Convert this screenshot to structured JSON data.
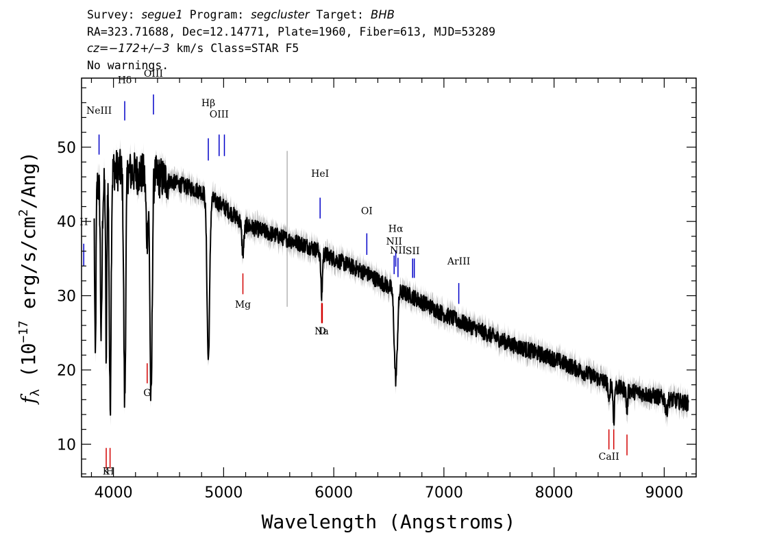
{
  "header": {
    "line1": {
      "survey_label": "Survey: ",
      "survey": "segue1",
      "program_label": " Program: ",
      "program": "segcluster",
      "target_label": " Target: ",
      "target": "BHB"
    },
    "line2": "RA=323.71688, Dec=12.14771, Plate=1960, Fiber=613, MJD=53289",
    "line3": {
      "cz_label": "cz=",
      "cz": "−172+/−3",
      "cz_rest": " km/s Class=STAR F5"
    },
    "line4": "No warnings."
  },
  "chart_data": {
    "type": "line",
    "xlabel": "Wavelength (Angstroms)",
    "ylabel_parts": [
      "f",
      "λ",
      " (10",
      "−17",
      " erg/s/cm",
      "2",
      "/Ang)"
    ],
    "xlim": [
      3710,
      9290
    ],
    "ylim": [
      5.6,
      59.3
    ],
    "xticks": [
      4000,
      5000,
      6000,
      7000,
      8000,
      9000
    ],
    "yticks": [
      10,
      20,
      30,
      40,
      50
    ],
    "xminor_step": 200,
    "yminor_step": 2,
    "colors": {
      "flux": "#000000",
      "error": "#b4b4b4",
      "emission": "#0000c8",
      "absorption": "#d20000"
    },
    "flux_continuum": [
      [
        3800,
        46
      ],
      [
        3900,
        44
      ],
      [
        4000,
        47
      ],
      [
        4200,
        46.5
      ],
      [
        4400,
        46
      ],
      [
        4600,
        45
      ],
      [
        4800,
        44
      ],
      [
        5000,
        42
      ],
      [
        5200,
        39.5
      ],
      [
        5500,
        38
      ],
      [
        5800,
        36.5
      ],
      [
        6000,
        35
      ],
      [
        6300,
        33
      ],
      [
        6500,
        31.2
      ],
      [
        6700,
        30
      ],
      [
        7000,
        27.5
      ],
      [
        7300,
        25.5
      ],
      [
        7600,
        23.5
      ],
      [
        8000,
        21.5
      ],
      [
        8300,
        19.5
      ],
      [
        8600,
        17.5
      ],
      [
        8900,
        16.5
      ],
      [
        9220,
        15.5
      ]
    ],
    "flux_absorptions": [
      {
        "center": 3835,
        "width": 6,
        "depth": 24
      },
      {
        "center": 3889,
        "width": 7,
        "depth": 20
      },
      {
        "center": 3934,
        "width": 5,
        "depth": 24
      },
      {
        "center": 3970,
        "width": 8,
        "depth": 31
      },
      {
        "center": 4102,
        "width": 9,
        "depth": 31
      },
      {
        "center": 4305,
        "width": 10,
        "depth": 8
      },
      {
        "center": 4341,
        "width": 10,
        "depth": 31
      },
      {
        "center": 4861,
        "width": 12,
        "depth": 22
      },
      {
        "center": 5175,
        "width": 10,
        "depth": 4
      },
      {
        "center": 5890,
        "width": 7,
        "depth": 6
      },
      {
        "center": 6563,
        "width": 14,
        "depth": 12
      },
      {
        "center": 8498,
        "width": 6,
        "depth": 3
      },
      {
        "center": 8542,
        "width": 6,
        "depth": 5
      },
      {
        "center": 8662,
        "width": 6,
        "depth": 3
      },
      {
        "center": 9020,
        "width": 8,
        "depth": 2
      }
    ],
    "flux_noise": 1.1,
    "error_spike": {
      "x": 5577,
      "ymin": 28.5,
      "ymax": 49.5
    },
    "lines_emission": [
      {
        "label": "H",
        "x": 3730,
        "ymin": 34,
        "ymax": 37,
        "label_y": 39.5
      },
      {
        "label": "NeIII",
        "x": 3869,
        "ymin": 49,
        "ymax": 51.7,
        "label_y": 54.5
      },
      {
        "label": "Hδ",
        "x": 4102,
        "ymin": 53.6,
        "ymax": 56.2,
        "label_y": 58.6
      },
      {
        "label": "OIII",
        "x": 4363,
        "ymin": 54.4,
        "ymax": 57.1,
        "label_y": 59.5
      },
      {
        "label": "Hβ",
        "x": 4861,
        "ymin": 48.2,
        "ymax": 51.2,
        "label_y": 55.5
      },
      {
        "label": "OIII",
        "x": 4959,
        "ymin": 48.8,
        "ymax": 51.7,
        "label_y": 54
      },
      {
        "label": "",
        "x": 5007,
        "ymin": 48.8,
        "ymax": 51.7,
        "label_y": 54
      },
      {
        "label": "HeI",
        "x": 5876,
        "ymin": 40.4,
        "ymax": 43.2,
        "label_y": 46
      },
      {
        "label": "OI",
        "x": 6300,
        "ymin": 35.5,
        "ymax": 38.4,
        "label_y": 41
      },
      {
        "label": "Hα",
        "x": 6563,
        "ymin": 33.9,
        "ymax": 36.1,
        "label_y": 38.6
      },
      {
        "label": "NII",
        "x": 6548,
        "ymin": 32.9,
        "ymax": 35.4,
        "label_y": 36.9
      },
      {
        "label": "NII",
        "x": 6583,
        "ymin": 32.5,
        "ymax": 35.1,
        "label_y": 35.7
      },
      {
        "label": "SII",
        "x": 6716,
        "ymin": 32.4,
        "ymax": 35.0,
        "label_y": 35.6
      },
      {
        "label": "",
        "x": 6731,
        "ymin": 32.4,
        "ymax": 35.0,
        "label_y": 35.6
      },
      {
        "label": "ArIII",
        "x": 7135,
        "ymin": 28.9,
        "ymax": 31.7,
        "label_y": 34.2
      }
    ],
    "lines_absorption": [
      {
        "label": "K",
        "x": 3934,
        "ymin": 6.7,
        "ymax": 9.5,
        "label_y": 5.9
      },
      {
        "label": "H",
        "x": 3969,
        "ymin": 6.7,
        "ymax": 9.5,
        "label_y": 5.9
      },
      {
        "label": "G",
        "x": 4306,
        "ymin": 18.2,
        "ymax": 20.9,
        "label_y": 16.5
      },
      {
        "label": "Mg",
        "x": 5175,
        "ymin": 30.2,
        "ymax": 33.0,
        "label_y": 28.4
      },
      {
        "label": "Na",
        "x": 5890,
        "ymin": 26.3,
        "ymax": 29.0,
        "label_y": 24.8
      },
      {
        "label": "D",
        "x": 5896,
        "ymin": 26.3,
        "ymax": 29.0,
        "label_y": 24.8
      },
      {
        "label": "CaII",
        "x": 8498,
        "ymin": 9.3,
        "ymax": 12.0,
        "label_y": 7.9
      },
      {
        "label": "",
        "x": 8542,
        "ymin": 9.3,
        "ymax": 12.0,
        "label_y": 7.9
      },
      {
        "label": "",
        "x": 8662,
        "ymin": 8.5,
        "ymax": 11.3,
        "label_y": 7.9
      }
    ]
  }
}
